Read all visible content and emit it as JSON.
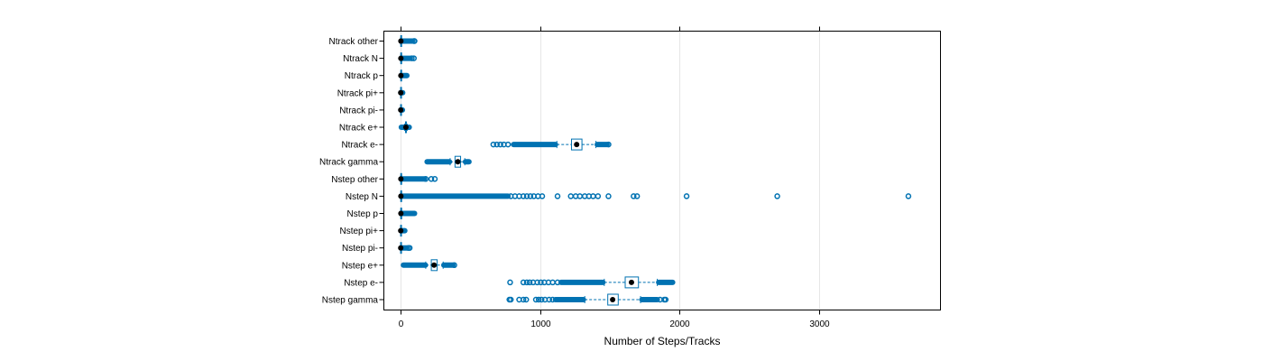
{
  "chart_data": {
    "type": "boxplot",
    "orientation": "horizontal",
    "xlabel": "Number of Steps/Tracks",
    "xlim": [
      -120,
      3870
    ],
    "xticks": [
      0,
      1000,
      2000,
      3000
    ],
    "grid": "vertical",
    "colors": {
      "outlier": "#0072b2",
      "box": "#0072b2",
      "median": "#000000",
      "frame": "#000000",
      "grid": "#e6e6e6"
    },
    "categories": [
      {
        "label": "Ntrack other",
        "q1": 1,
        "median": 2,
        "q3": 3,
        "whisker_low": 0,
        "whisker_high": 6,
        "outlier_segments": [
          [
            6,
            85
          ]
        ],
        "outlier_points": [
          95,
          100
        ]
      },
      {
        "label": "Ntrack N",
        "q1": 1,
        "median": 2,
        "q3": 4,
        "whisker_low": 0,
        "whisker_high": 8,
        "outlier_segments": [
          [
            8,
            70
          ]
        ],
        "outlier_points": [
          80,
          95
        ]
      },
      {
        "label": "Ntrack p",
        "q1": 1,
        "median": 2,
        "q3": 3,
        "whisker_low": 0,
        "whisker_high": 6,
        "outlier_segments": [
          [
            6,
            45
          ]
        ],
        "outlier_points": []
      },
      {
        "label": "Ntrack pi+",
        "q1": 0,
        "median": 1,
        "q3": 1,
        "whisker_low": 0,
        "whisker_high": 2,
        "outlier_segments": [
          [
            2,
            15
          ]
        ],
        "outlier_points": []
      },
      {
        "label": "Ntrack pi-",
        "q1": 0,
        "median": 1,
        "q3": 1,
        "whisker_low": 0,
        "whisker_high": 2,
        "outlier_segments": [
          [
            2,
            13
          ]
        ],
        "outlier_points": []
      },
      {
        "label": "Ntrack e+",
        "q1": 35,
        "median": 38,
        "q3": 41,
        "whisker_low": 28,
        "whisker_high": 47,
        "outlier_segments": [
          [
            5,
            28
          ],
          [
            47,
            62
          ]
        ],
        "outlier_points": []
      },
      {
        "label": "Ntrack e-",
        "q1": 1225,
        "median": 1262,
        "q3": 1300,
        "whisker_low": 1120,
        "whisker_high": 1400,
        "outlier_segments": [
          [
            810,
            1110
          ],
          [
            1410,
            1480
          ]
        ],
        "outlier_points": [
          665,
          690,
          715,
          740,
          770,
          1490
        ]
      },
      {
        "label": "Ntrack gamma",
        "q1": 390,
        "median": 410,
        "q3": 430,
        "whisker_low": 355,
        "whisker_high": 460,
        "outlier_segments": [
          [
            190,
            350
          ],
          [
            465,
            490
          ]
        ],
        "outlier_points": []
      },
      {
        "label": "Nstep other",
        "q1": 1,
        "median": 2,
        "q3": 4,
        "whisker_low": 0,
        "whisker_high": 8,
        "outlier_segments": [
          [
            8,
            170
          ]
        ],
        "outlier_points": [
          180,
          220,
          245
        ]
      },
      {
        "label": "Nstep N",
        "q1": 1,
        "median": 2,
        "q3": 4,
        "whisker_low": 0,
        "whisker_high": 8,
        "outlier_segments": [
          [
            8,
            770
          ]
        ],
        "outlier_points": [
          790,
          820,
          850,
          880,
          905,
          930,
          955,
          985,
          1015,
          1125,
          1220,
          1255,
          1285,
          1320,
          1350,
          1380,
          1415,
          1490,
          1670,
          1695,
          2050,
          2700,
          3640
        ]
      },
      {
        "label": "Nstep p",
        "q1": 1,
        "median": 2,
        "q3": 4,
        "whisker_low": 0,
        "whisker_high": 8,
        "outlier_segments": [
          [
            8,
            100
          ]
        ],
        "outlier_points": []
      },
      {
        "label": "Nstep pi+",
        "q1": 0,
        "median": 1,
        "q3": 2,
        "whisker_low": 0,
        "whisker_high": 4,
        "outlier_segments": [
          [
            4,
            30
          ]
        ],
        "outlier_points": []
      },
      {
        "label": "Nstep pi-",
        "q1": 0,
        "median": 1,
        "q3": 2,
        "whisker_low": 0,
        "whisker_high": 4,
        "outlier_segments": [
          [
            4,
            45
          ]
        ],
        "outlier_points": [
          55,
          65
        ]
      },
      {
        "label": "Nstep e+",
        "q1": 220,
        "median": 240,
        "q3": 262,
        "whisker_low": 180,
        "whisker_high": 305,
        "outlier_segments": [
          [
            20,
            178
          ],
          [
            310,
            375
          ]
        ],
        "outlier_points": [
          385
        ]
      },
      {
        "label": "Nstep e-",
        "q1": 1610,
        "median": 1655,
        "q3": 1705,
        "whisker_low": 1460,
        "whisker_high": 1840,
        "outlier_segments": [
          [
            1150,
            1450
          ],
          [
            1850,
            1950
          ]
        ],
        "outlier_points": [
          785,
          880,
          905,
          925,
          950,
          980,
          1005,
          1030,
          1060,
          1090,
          1125
        ]
      },
      {
        "label": "Nstep gamma",
        "q1": 1485,
        "median": 1520,
        "q3": 1560,
        "whisker_low": 1320,
        "whisker_high": 1720,
        "outlier_segments": [
          [
            1110,
            1310
          ],
          [
            1730,
            1840
          ]
        ],
        "outlier_points": [
          780,
          790,
          850,
          880,
          900,
          970,
          990,
          1010,
          1035,
          1065,
          1090,
          1860,
          1890,
          1900
        ]
      }
    ]
  }
}
